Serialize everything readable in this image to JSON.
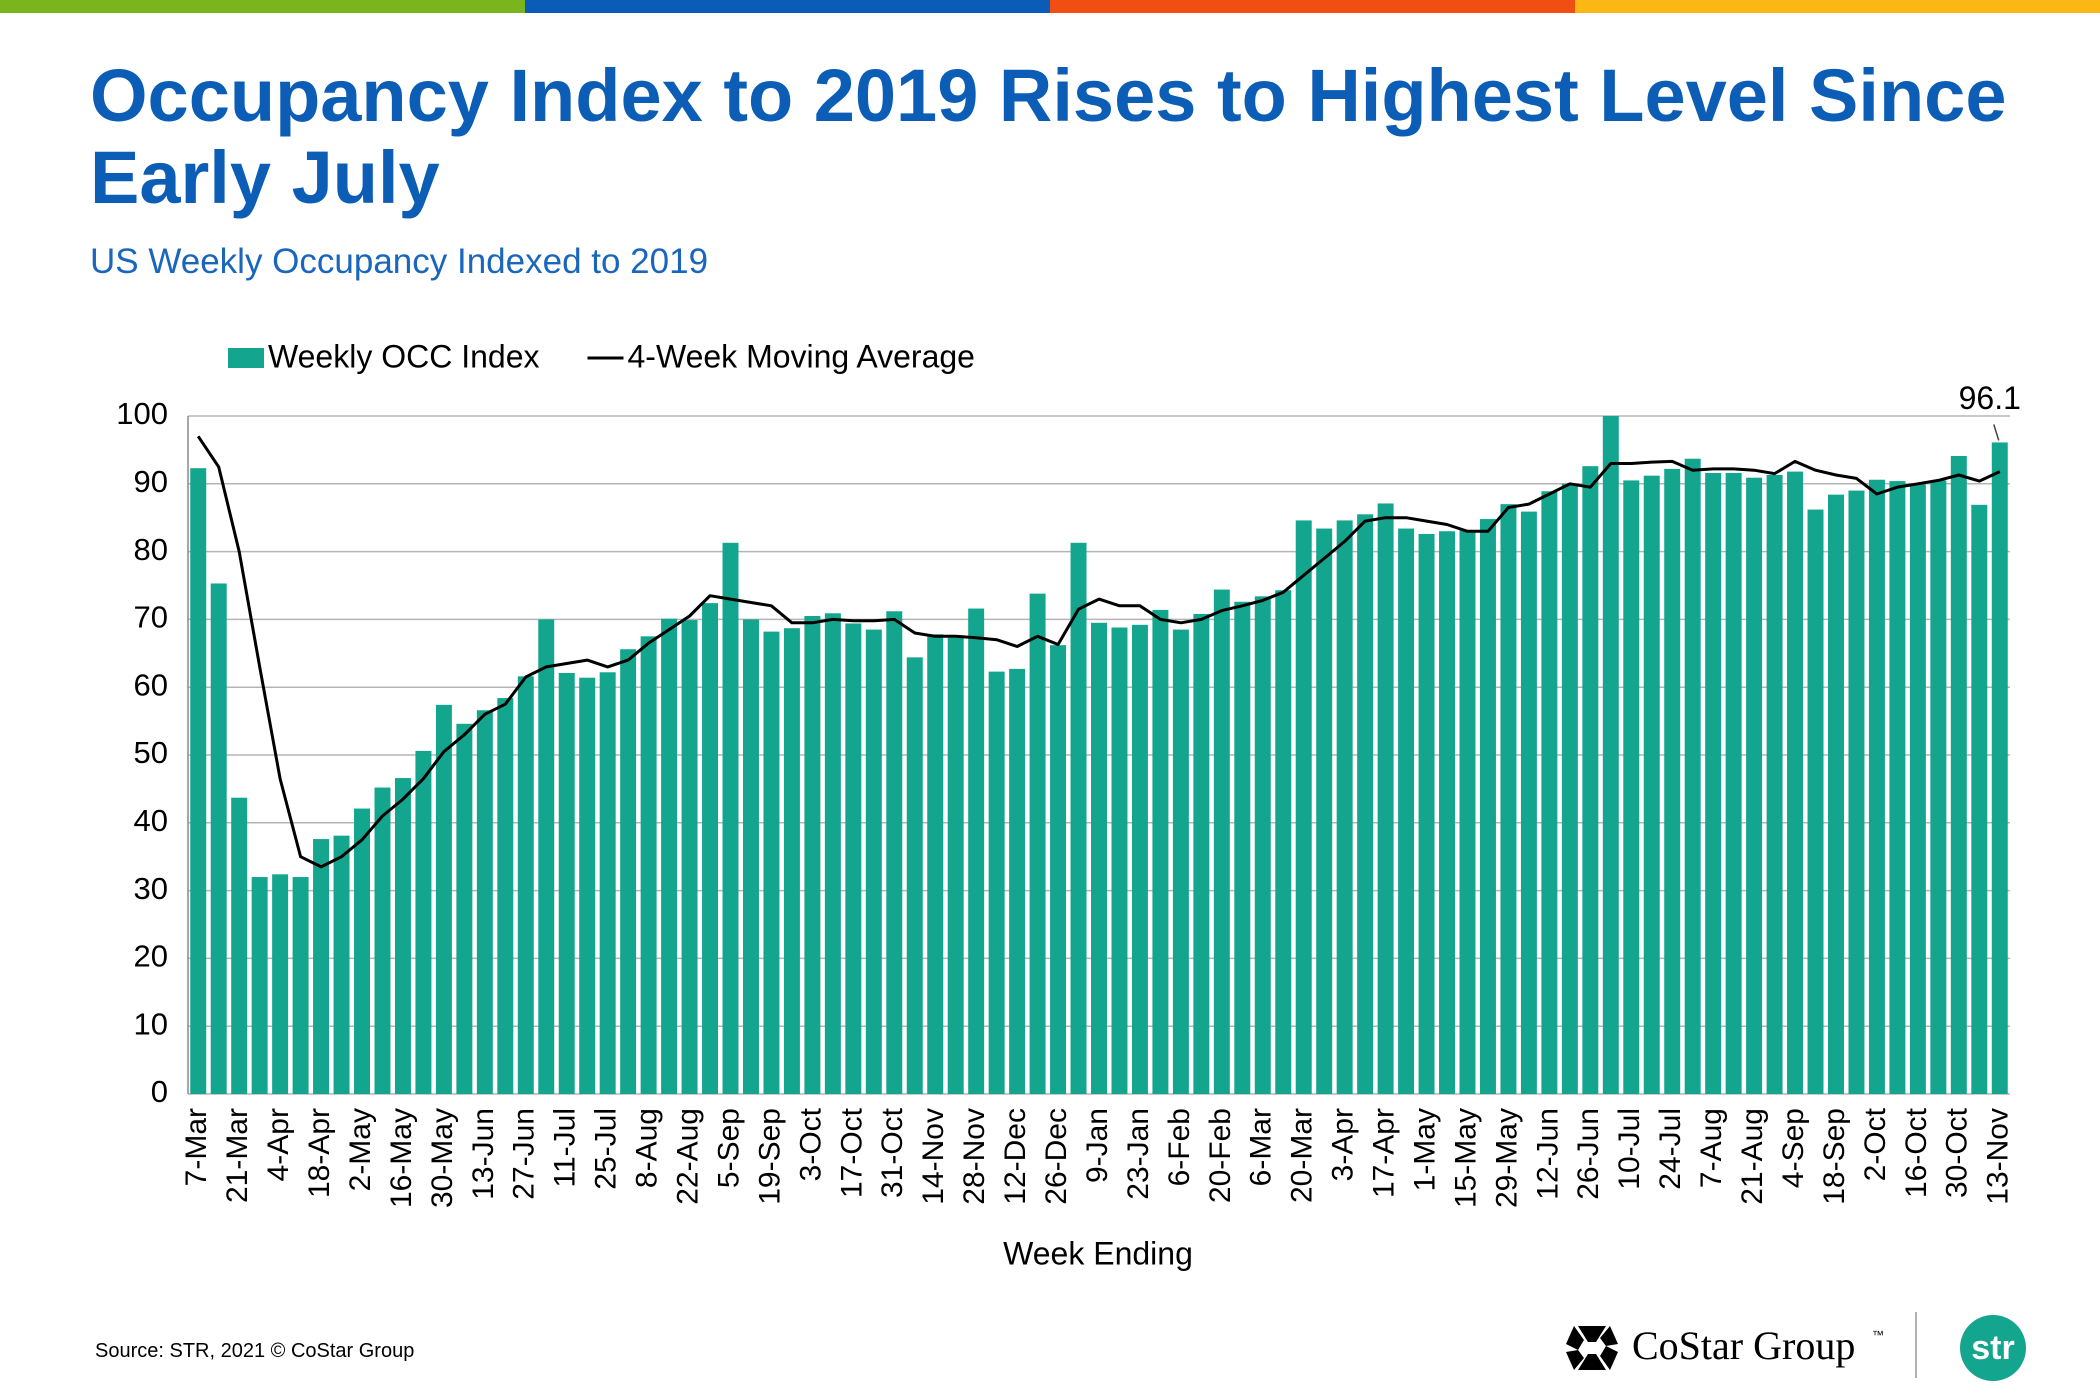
{
  "chart_data": {
    "type": "bar",
    "title": "Occupancy Index to 2019 Rises to Highest Level Since Early July",
    "subtitle": "US Weekly Occupancy Indexed to 2019",
    "x_label": "Week Ending",
    "categories": [
      "7-Mar",
      null,
      "21-Mar",
      null,
      "4-Apr",
      null,
      "18-Apr",
      null,
      "2-May",
      null,
      "16-May",
      null,
      "30-May",
      null,
      "13-Jun",
      null,
      "27-Jun",
      null,
      "11-Jul",
      null,
      "25-Jul",
      null,
      "8-Aug",
      null,
      "22-Aug",
      null,
      "5-Sep",
      null,
      "19-Sep",
      null,
      "3-Oct",
      null,
      "17-Oct",
      null,
      "31-Oct",
      null,
      "14-Nov",
      null,
      "28-Nov",
      null,
      "12-Dec",
      null,
      "26-Dec",
      null,
      "9-Jan",
      null,
      "23-Jan",
      null,
      "6-Feb",
      null,
      "20-Feb",
      null,
      "6-Mar",
      null,
      "20-Mar",
      null,
      "3-Apr",
      null,
      "17-Apr",
      null,
      "1-May",
      null,
      "15-May",
      null,
      "29-May",
      null,
      "12-Jun",
      null,
      "26-Jun",
      null,
      "10-Jul",
      null,
      "24-Jul",
      null,
      "7-Aug",
      null,
      "21-Aug",
      null,
      "4-Sep",
      null,
      "18-Sep",
      null,
      "2-Oct",
      null,
      "16-Oct",
      null,
      "30-Oct",
      null,
      "13-Nov"
    ],
    "series": [
      {
        "name": "Weekly OCC Index",
        "type": "bar",
        "color": "#13a58d",
        "values": [
          92.3,
          75.3,
          43.7,
          32.0,
          32.4,
          32.0,
          37.6,
          38.1,
          42.1,
          45.2,
          46.6,
          50.6,
          57.4,
          54.6,
          56.6,
          58.4,
          61.6,
          70.0,
          62.1,
          61.4,
          62.2,
          65.6,
          67.5,
          70.1,
          69.9,
          72.4,
          81.3,
          70.0,
          68.2,
          68.7,
          70.5,
          70.9,
          69.4,
          68.5,
          71.2,
          64.4,
          67.8,
          67.3,
          71.6,
          62.3,
          62.7,
          73.8,
          66.2,
          81.3,
          69.5,
          68.8,
          69.2,
          71.4,
          68.5,
          70.8,
          74.4,
          72.6,
          73.4,
          74.3,
          84.6,
          83.4,
          84.6,
          85.5,
          87.1,
          83.4,
          82.6,
          83.0,
          83.1,
          84.8,
          87.0,
          85.9,
          88.9,
          90.0,
          92.6,
          100.0,
          90.5,
          91.2,
          92.2,
          93.7,
          91.6,
          91.6,
          90.9,
          91.3,
          91.8,
          86.2,
          88.4,
          89.0,
          90.6,
          90.4,
          89.9,
          90.5,
          94.1,
          86.9,
          96.1
        ]
      },
      {
        "name": "4-Week Moving Average",
        "type": "line",
        "color": "#000000",
        "values": [
          97.0,
          92.5,
          80.0,
          63.0,
          46.5,
          35.0,
          33.5,
          35.0,
          37.5,
          41.0,
          43.5,
          46.5,
          50.5,
          53.0,
          56.0,
          57.5,
          61.5,
          63.0,
          63.5,
          64.0,
          63.0,
          64.0,
          66.5,
          68.5,
          70.5,
          73.5,
          73.0,
          72.5,
          72.0,
          69.5,
          69.5,
          70.0,
          69.8,
          69.8,
          70.0,
          68.0,
          67.5,
          67.5,
          67.3,
          67.0,
          66.0,
          67.5,
          66.3,
          71.5,
          73.0,
          72.0,
          72.0,
          70.0,
          69.5,
          70.0,
          71.3,
          72.0,
          72.8,
          74.0,
          76.5,
          79.0,
          81.5,
          84.5,
          85.0,
          85.0,
          84.5,
          84.0,
          83.0,
          83.0,
          86.5,
          87.0,
          88.5,
          90.0,
          89.5,
          93.0,
          93.0,
          93.2,
          93.3,
          92.0,
          92.2,
          92.2,
          92.0,
          91.5,
          93.3,
          92.0,
          91.3,
          90.8,
          88.5,
          89.5,
          90.0,
          90.5,
          91.3,
          90.4,
          91.8
        ]
      }
    ],
    "ylim": [
      0,
      100
    ],
    "yticks": [
      0,
      10,
      20,
      30,
      40,
      50,
      60,
      70,
      80,
      90,
      100
    ],
    "grid": true,
    "legend": "top-left"
  },
  "footer": {
    "source": "Source: STR, 2021 © CoStar Group",
    "logo": "CoStar Group",
    "trademark": "™",
    "badge": "str"
  }
}
